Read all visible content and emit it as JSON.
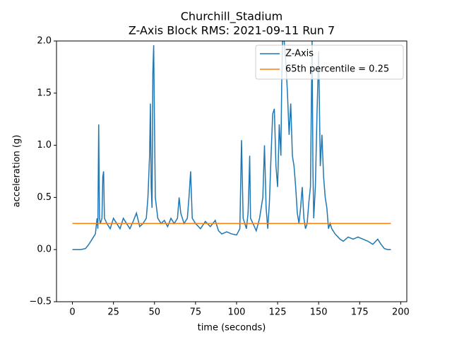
{
  "chart_data": {
    "type": "line",
    "title": "Churchill_Stadium",
    "subtitle": "Z-Axis Block RMS: 2021-09-11 Run 7",
    "x_label": "time (seconds)",
    "y_label": "acceleration (g)",
    "xlim": [
      -9.7,
      203.7
    ],
    "ylim": [
      -0.5,
      2.0
    ],
    "xticks": [
      0,
      25,
      50,
      75,
      100,
      125,
      150,
      175,
      200
    ],
    "yticks": [
      {
        "value": -0.5,
        "label": "−0.5"
      },
      {
        "value": 0,
        "label": "0.0"
      },
      0.5,
      {
        "value": 1,
        "label": "1.0"
      },
      1.5,
      {
        "value": 2,
        "label": "2.0"
      }
    ],
    "legend": "upper right",
    "series": [
      {
        "name": "Z-Axis",
        "color": "#1f77b4",
        "x": [
          0,
          5,
          8,
          10,
          12,
          14,
          15,
          15.5,
          16,
          16.5,
          17,
          18,
          18.5,
          19,
          19.5,
          21,
          23,
          25,
          27,
          29,
          31,
          33,
          35,
          37,
          39,
          41,
          43,
          45,
          46,
          47,
          47.5,
          48,
          48.5,
          49,
          49.5,
          50,
          50.5,
          52,
          54,
          56,
          58,
          60,
          62,
          64,
          65,
          66,
          68,
          70,
          71,
          72,
          73,
          75,
          78,
          81,
          84,
          87,
          89,
          91,
          94,
          97,
          100,
          102,
          103,
          104,
          106,
          107,
          107.5,
          108,
          108.5,
          110,
          112,
          114,
          116,
          117,
          118,
          119,
          120,
          121,
          122,
          123,
          124,
          125,
          126,
          127,
          127.5,
          128,
          129,
          130,
          131,
          132,
          133,
          134,
          135,
          136,
          137,
          138,
          139,
          140,
          141,
          142,
          143,
          144,
          145,
          146,
          146.5,
          147,
          148,
          149,
          150,
          151,
          152,
          153,
          154,
          155,
          156,
          157,
          158,
          160,
          163,
          165,
          168,
          171,
          174,
          177,
          180,
          183,
          186,
          188,
          190,
          192,
          194
        ],
        "values": [
          0,
          0,
          0.01,
          0.05,
          0.1,
          0.15,
          0.3,
          0.2,
          1.2,
          0.3,
          0.25,
          0.3,
          0.7,
          0.75,
          0.3,
          0.25,
          0.2,
          0.3,
          0.25,
          0.2,
          0.3,
          0.25,
          0.2,
          0.27,
          0.35,
          0.22,
          0.25,
          0.3,
          0.5,
          0.9,
          1.4,
          0.6,
          0.4,
          1.7,
          1.96,
          1.2,
          0.5,
          0.3,
          0.25,
          0.28,
          0.22,
          0.3,
          0.25,
          0.3,
          0.5,
          0.35,
          0.25,
          0.3,
          0.5,
          0.75,
          0.3,
          0.25,
          0.2,
          0.27,
          0.22,
          0.28,
          0.18,
          0.15,
          0.17,
          0.15,
          0.14,
          0.2,
          1.05,
          0.3,
          0.2,
          0.35,
          0.6,
          0.9,
          0.3,
          0.25,
          0.18,
          0.3,
          0.5,
          1.0,
          0.4,
          0.2,
          0.45,
          0.9,
          1.3,
          1.35,
          0.8,
          0.6,
          1.2,
          0.9,
          1.6,
          2.0,
          2.0,
          1.8,
          1.5,
          1.1,
          1.4,
          0.9,
          0.8,
          0.6,
          0.35,
          0.25,
          0.4,
          0.6,
          0.3,
          0.2,
          0.25,
          0.45,
          0.6,
          2.0,
          0.8,
          0.3,
          0.6,
          1.3,
          1.9,
          0.8,
          1.1,
          0.7,
          0.5,
          0.4,
          0.2,
          0.25,
          0.2,
          0.15,
          0.1,
          0.08,
          0.12,
          0.1,
          0.12,
          0.1,
          0.08,
          0.05,
          0.1,
          0.05,
          0.01,
          0,
          0
        ]
      },
      {
        "name": "65th percentile = 0.25",
        "color": "#ff7f0e",
        "x": [
          0,
          194
        ],
        "values": [
          0.25,
          0.25
        ]
      }
    ]
  }
}
